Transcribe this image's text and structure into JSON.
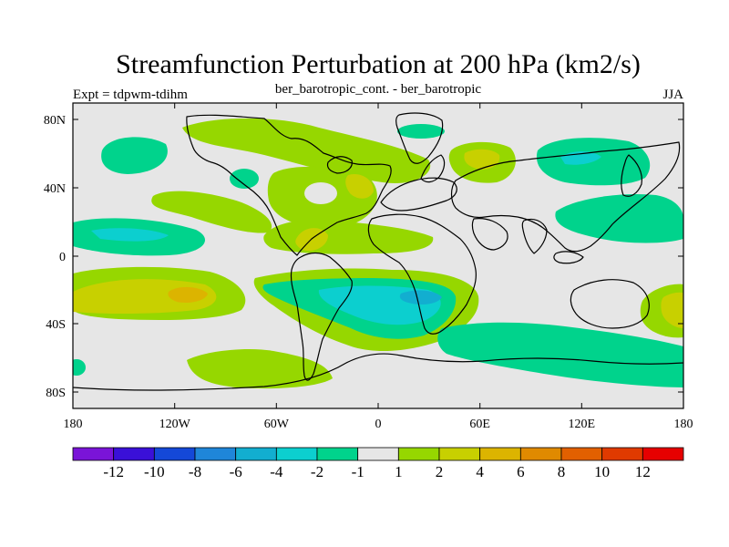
{
  "title": "Streamfunction Perturbation at 200 hPa (km2/s)",
  "left_string": "Expt = tdpwm-tdihm",
  "center_string": "ber_barotropic_cont. - ber_barotropic",
  "right_string": "JJA",
  "lat_labels": [
    "80N",
    "40N",
    "0",
    "40S",
    "80S"
  ],
  "lon_labels": [
    "180",
    "120W",
    "60W",
    "0",
    "60E",
    "120E",
    "180"
  ],
  "colorbar": {
    "labels": [
      "-12",
      "-10",
      "-8",
      "-6",
      "-4",
      "-2",
      "-1",
      "1",
      "2",
      "4",
      "6",
      "8",
      "10",
      "12"
    ],
    "colors": [
      "#7a14d8",
      "#3a10d8",
      "#1448d8",
      "#1f86d9",
      "#12aed0",
      "#0ccfcf",
      "#00d38c",
      "#e6e6e6",
      "#96d700",
      "#c8d000",
      "#dcb400",
      "#e08a00",
      "#e26000",
      "#e03a00",
      "#e60000"
    ]
  },
  "colors": {
    "background": "#e6e6e6",
    "light_pos": "#96d700",
    "mid_pos": "#c8d000",
    "high_pos": "#dcb400",
    "light_neg": "#00d38c",
    "mid_neg": "#0ccfcf",
    "deep_neg": "#12aed0"
  }
}
